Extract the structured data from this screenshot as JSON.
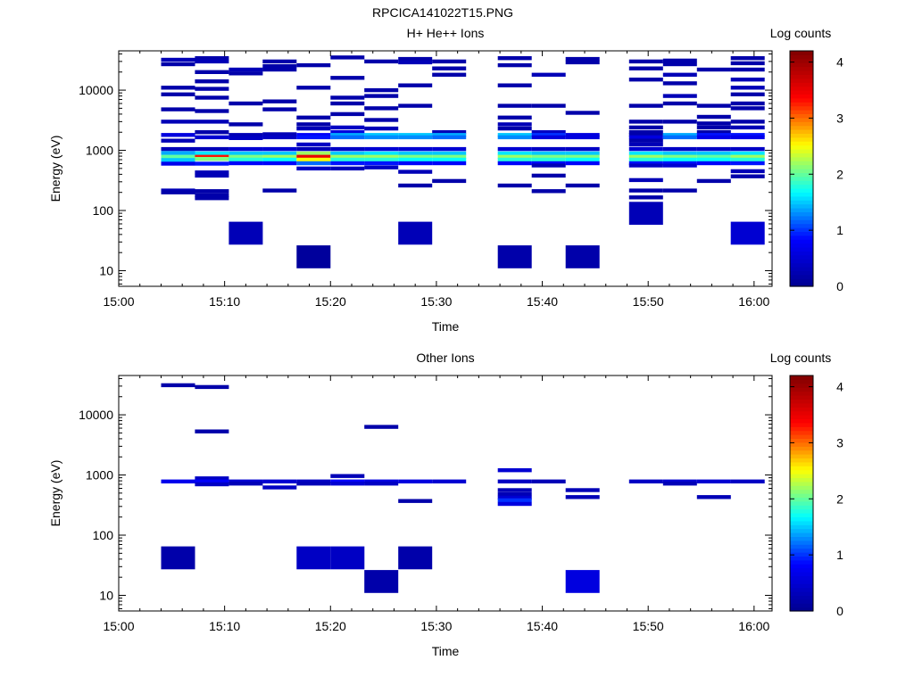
{
  "figure_title": "RPCICA141022T15.PNG",
  "colormap_stops": [
    "#00008f",
    "#0000ff",
    "#00ffff",
    "#ffff00",
    "#ff0000",
    "#800000"
  ],
  "chart_data": [
    {
      "type": "heatmap",
      "title": "H+ He++ Ions",
      "xlabel": "Time",
      "ylabel": "Energy (eV)",
      "x_ticks": [
        "15:00",
        "15:10",
        "15:20",
        "15:30",
        "15:40",
        "15:50",
        "16:00"
      ],
      "x_tick_minutes": [
        0,
        10,
        20,
        30,
        40,
        50,
        60
      ],
      "xlim_minutes": [
        0,
        61.7
      ],
      "y_scale": "log",
      "ylim": [
        5.5,
        45000
      ],
      "y_ticks": [
        10,
        100,
        1000,
        10000
      ],
      "y_tick_labels": [
        "10",
        "100",
        "1000",
        "10000"
      ],
      "colorbar": {
        "label": "Log counts",
        "range": [
          0,
          4.2
        ],
        "ticks": [
          0,
          1,
          2,
          3,
          4
        ],
        "tick_labels": [
          "0",
          "1",
          "2",
          "3",
          "4"
        ]
      },
      "scan_start_minutes": [
        4,
        7.2,
        10.4,
        13.6,
        16.8,
        20,
        23.2,
        26.4,
        29.6,
        35.8,
        39,
        42.2,
        48.2,
        51.4,
        54.6,
        57.8
      ],
      "scan_width_minutes": 3.2,
      "cells": [
        {
          "s": 0,
          "e": [
            32000,
            27000,
            11000,
            8500,
            4800,
            3000,
            1800,
            1450,
            1050,
            900,
            780,
            690,
            600,
            215,
            200
          ],
          "v": [
            0.3,
            0.2,
            0.2,
            0.2,
            0.2,
            0.3,
            0.6,
            0.3,
            0.3,
            1.4,
            2.0,
            1.5,
            0.7,
            0.3,
            0.2
          ]
        },
        {
          "s": 1,
          "e": [
            34000,
            30000,
            20000,
            14000,
            10500,
            7500,
            4500,
            3000,
            2000,
            1650,
            1050,
            890,
            780,
            720,
            600,
            430,
            380,
            210,
            180,
            160
          ],
          "v": [
            0.2,
            0.3,
            0.2,
            0.2,
            0.2,
            0.2,
            0.2,
            0.3,
            0.2,
            0.5,
            0.3,
            1.6,
            3.3,
            2.1,
            0.9,
            0.3,
            0.3,
            0.2,
            0.2,
            0.2
          ]
        },
        {
          "s": 2,
          "e": [
            22000,
            19000,
            6000,
            2700,
            1800,
            1600,
            1050,
            890,
            780,
            700,
            610,
            42
          ],
          "v": [
            0.3,
            0.2,
            0.2,
            0.2,
            0.3,
            0.4,
            0.5,
            1.5,
            2.1,
            1.8,
            0.8,
            0.3
          ]
        },
        {
          "s": 3,
          "e": [
            30000,
            25000,
            22000,
            6500,
            4800,
            1850,
            1650,
            1050,
            890,
            780,
            700,
            610,
            215
          ],
          "v": [
            0.2,
            0.2,
            0.2,
            0.2,
            0.2,
            0.3,
            0.4,
            0.5,
            1.5,
            2.2,
            1.7,
            0.8,
            0.2
          ]
        },
        {
          "s": 4,
          "e": [
            26000,
            11000,
            3500,
            2700,
            2300,
            1800,
            1650,
            1250,
            1050,
            890,
            780,
            700,
            610,
            500,
            17
          ],
          "v": [
            0.2,
            0.2,
            0.2,
            0.2,
            0.3,
            0.8,
            0.9,
            0.4,
            0.3,
            2.2,
            3.5,
            2.5,
            1.2,
            0.4,
            0.1
          ]
        },
        {
          "s": 5,
          "e": [
            35000,
            16000,
            7500,
            6000,
            4000,
            2400,
            2000,
            1800,
            1650,
            1050,
            890,
            780,
            700,
            610,
            500
          ],
          "v": [
            0.2,
            0.2,
            0.2,
            0.2,
            0.2,
            0.4,
            0.6,
            1.4,
            1.2,
            0.4,
            1.5,
            2.2,
            1.8,
            0.9,
            0.3
          ]
        },
        {
          "s": 6,
          "e": [
            30000,
            10000,
            8000,
            5000,
            3200,
            2300,
            1800,
            1650,
            1050,
            890,
            780,
            700,
            610,
            520
          ],
          "v": [
            0.2,
            0.2,
            0.2,
            0.2,
            0.2,
            0.3,
            1.5,
            1.3,
            0.5,
            1.6,
            2.2,
            1.8,
            0.9,
            0.4
          ]
        },
        {
          "s": 7,
          "e": [
            33000,
            29000,
            12000,
            5500,
            1800,
            1650,
            1050,
            890,
            780,
            700,
            610,
            440,
            260,
            42
          ],
          "v": [
            0.2,
            0.3,
            0.2,
            0.2,
            1.5,
            1.3,
            0.5,
            1.5,
            2.1,
            1.7,
            0.8,
            0.3,
            0.2,
            0.3
          ]
        },
        {
          "s": 8,
          "e": [
            30000,
            23000,
            18000,
            2000,
            1800,
            1650,
            1050,
            890,
            780,
            700,
            610,
            310
          ],
          "v": [
            0.2,
            0.2,
            0.2,
            0.3,
            1.4,
            1.2,
            0.5,
            1.5,
            2.1,
            1.7,
            0.8,
            0.2
          ]
        },
        {
          "s": 9,
          "e": [
            34000,
            26000,
            12000,
            5500,
            3500,
            2700,
            2300,
            1800,
            1650,
            1050,
            890,
            780,
            700,
            610,
            260,
            17
          ],
          "v": [
            0.2,
            0.2,
            0.2,
            0.2,
            0.2,
            0.3,
            0.2,
            1.5,
            1.3,
            0.5,
            1.6,
            2.2,
            1.8,
            0.8,
            0.2,
            0.2
          ]
        },
        {
          "s": 10,
          "e": [
            18000,
            5500,
            2000,
            1800,
            1650,
            1050,
            890,
            780,
            700,
            610,
            560,
            380,
            210
          ],
          "v": [
            0.3,
            0.2,
            0.4,
            1.0,
            0.6,
            0.4,
            1.5,
            2.1,
            1.8,
            0.8,
            0.3,
            0.2,
            0.2
          ]
        },
        {
          "s": 11,
          "e": [
            33000,
            29000,
            4200,
            1800,
            1650,
            1050,
            890,
            780,
            700,
            610,
            260,
            17
          ],
          "v": [
            0.2,
            0.2,
            0.2,
            0.6,
            0.6,
            0.4,
            1.5,
            2.1,
            1.7,
            0.8,
            0.2,
            0.2
          ]
        },
        {
          "s": 12,
          "e": [
            30000,
            23000,
            15000,
            5500,
            3000,
            2400,
            2000,
            1800,
            1650,
            1450,
            1250,
            1050,
            890,
            780,
            700,
            610,
            560,
            320,
            215,
            165,
            90
          ],
          "v": [
            0.2,
            0.2,
            0.2,
            0.2,
            0.2,
            0.2,
            0.2,
            0.2,
            0.6,
            0.2,
            0.3,
            0.5,
            1.6,
            2.2,
            1.8,
            0.9,
            0.4,
            0.3,
            0.2,
            0.2,
            0.3
          ]
        },
        {
          "s": 13,
          "e": [
            31000,
            27000,
            18000,
            13000,
            8000,
            6000,
            3000,
            1800,
            1650,
            1050,
            890,
            780,
            700,
            610,
            560,
            215
          ],
          "v": [
            0.2,
            0.2,
            0.3,
            0.2,
            0.3,
            0.2,
            0.2,
            1.4,
            1.2,
            0.4,
            1.5,
            2.1,
            1.7,
            0.9,
            0.5,
            0.2
          ]
        },
        {
          "s": 14,
          "e": [
            22000,
            5500,
            3600,
            2800,
            2400,
            2000,
            1800,
            1650,
            1050,
            890,
            780,
            700,
            610,
            310
          ],
          "v": [
            0.2,
            0.2,
            0.2,
            0.2,
            0.2,
            0.2,
            0.9,
            0.7,
            0.4,
            1.5,
            2.0,
            1.7,
            0.8,
            0.2
          ]
        },
        {
          "s": 15,
          "e": [
            34000,
            28000,
            22000,
            15000,
            11000,
            8500,
            6000,
            5000,
            3000,
            2400,
            1800,
            1650,
            1050,
            890,
            780,
            700,
            610,
            450,
            370,
            42
          ],
          "v": [
            0.2,
            0.2,
            0.2,
            0.3,
            0.3,
            0.2,
            0.2,
            0.2,
            0.2,
            0.3,
            0.9,
            0.7,
            0.4,
            1.6,
            2.2,
            1.8,
            0.9,
            0.3,
            0.2,
            0.5
          ]
        }
      ]
    },
    {
      "type": "heatmap",
      "title": "Other Ions",
      "xlabel": "Time",
      "ylabel": "Energy (eV)",
      "x_ticks": [
        "15:00",
        "15:10",
        "15:20",
        "15:30",
        "15:40",
        "15:50",
        "16:00"
      ],
      "x_tick_minutes": [
        0,
        10,
        20,
        30,
        40,
        50,
        60
      ],
      "xlim_minutes": [
        0,
        61.7
      ],
      "y_scale": "log",
      "ylim": [
        5.5,
        45000
      ],
      "y_ticks": [
        10,
        100,
        1000,
        10000
      ],
      "y_tick_labels": [
        "10",
        "100",
        "1000",
        "10000"
      ],
      "colorbar": {
        "label": "Log counts",
        "range": [
          0,
          4.2
        ],
        "ticks": [
          0,
          1,
          2,
          3,
          4
        ],
        "tick_labels": [
          "0",
          "1",
          "2",
          "3",
          "4"
        ]
      },
      "scan_start_minutes": [
        4,
        7.2,
        10.4,
        13.6,
        16.8,
        20,
        23.2,
        26.4,
        29.6,
        35.8,
        39,
        42.2,
        48.2,
        51.4,
        54.6,
        57.8
      ],
      "scan_width_minutes": 3.2,
      "cells": [
        {
          "s": 0,
          "e": [
            31000,
            780,
            42
          ],
          "v": [
            0.2,
            0.7,
            0.2
          ]
        },
        {
          "s": 1,
          "e": [
            29000,
            5300,
            880,
            780,
            700
          ],
          "v": [
            0.2,
            0.2,
            0.4,
            0.8,
            0.4
          ]
        },
        {
          "s": 2,
          "e": [
            780,
            720
          ],
          "v": [
            0.5,
            0.3
          ]
        },
        {
          "s": 3,
          "e": [
            780,
            620
          ],
          "v": [
            0.5,
            0.4
          ]
        },
        {
          "s": 4,
          "e": [
            780,
            720,
            42
          ],
          "v": [
            0.4,
            0.3,
            0.4
          ]
        },
        {
          "s": 5,
          "e": [
            960,
            780,
            720,
            42
          ],
          "v": [
            0.3,
            0.8,
            0.5,
            0.4
          ]
        },
        {
          "s": 6,
          "e": [
            6300,
            780,
            720,
            17
          ],
          "v": [
            0.2,
            0.6,
            0.4,
            0.2
          ]
        },
        {
          "s": 7,
          "e": [
            780,
            370,
            42
          ],
          "v": [
            0.6,
            0.2,
            0.2
          ]
        },
        {
          "s": 8,
          "e": [
            780
          ],
          "v": [
            0.5
          ]
        },
        {
          "s": 9,
          "e": [
            1200,
            780,
            560,
            480,
            420,
            380,
            330
          ],
          "v": [
            0.5,
            0.4,
            0.3,
            0.3,
            0.5,
            1.0,
            0.6
          ]
        },
        {
          "s": 10,
          "e": [
            780
          ],
          "v": [
            0.3
          ]
        },
        {
          "s": 11,
          "e": [
            560,
            430,
            17
          ],
          "v": [
            0.3,
            0.3,
            0.6
          ]
        },
        {
          "s": 12,
          "e": [
            780
          ],
          "v": [
            0.4
          ]
        },
        {
          "s": 13,
          "e": [
            780,
            720
          ],
          "v": [
            0.5,
            0.3
          ]
        },
        {
          "s": 14,
          "e": [
            780,
            430
          ],
          "v": [
            0.5,
            0.3
          ]
        },
        {
          "s": 15,
          "e": [
            780
          ],
          "v": [
            0.4
          ]
        }
      ]
    }
  ]
}
